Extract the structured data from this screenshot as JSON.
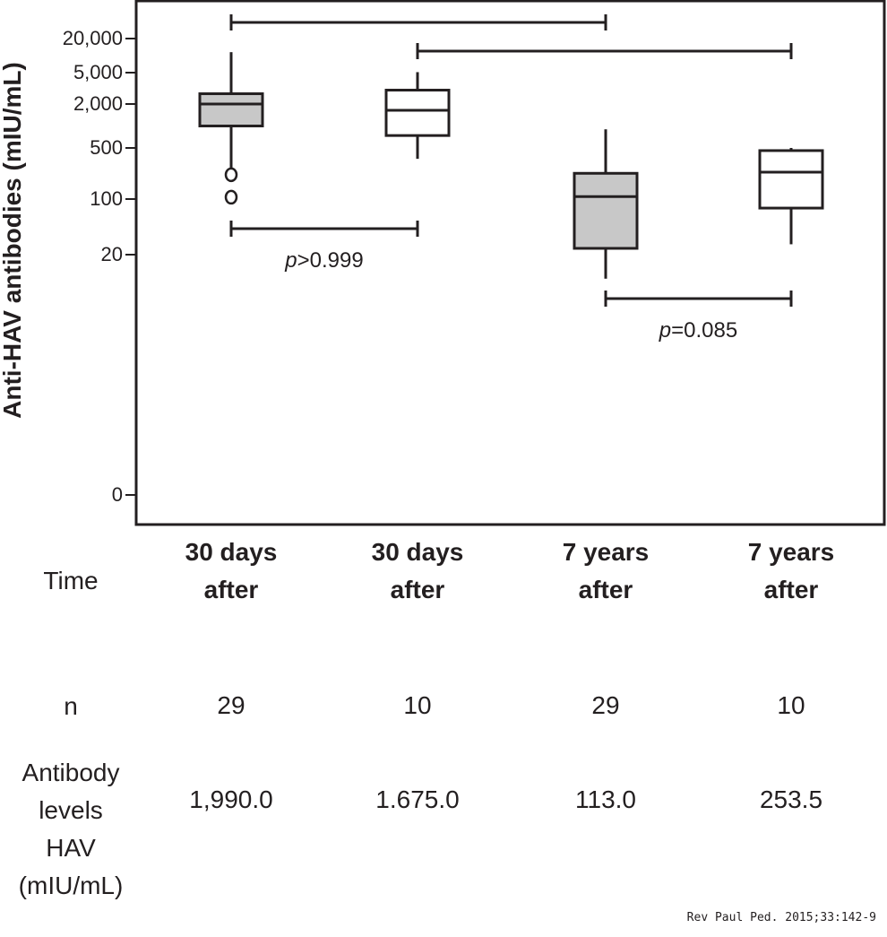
{
  "chart_data": {
    "type": "box",
    "ylabel": "Anti-HAV antibodies (mIU/mL)",
    "yscale": "log (broken, with 0 at bottom)",
    "yticks": [
      20000,
      5000,
      2000,
      500,
      100,
      20,
      0
    ],
    "ytick_labels": [
      "20,000",
      "5,000",
      "2,000",
      "500",
      "100",
      "20",
      "0"
    ],
    "grid": false,
    "categories": [
      {
        "line1": "30 days",
        "line2": "after"
      },
      {
        "line1": "30 days",
        "line2": "after"
      },
      {
        "line1": "7 years",
        "line2": "after"
      },
      {
        "line1": "7 years",
        "line2": "after"
      }
    ],
    "boxes": [
      {
        "fill": "#c8c8c8",
        "whisker_low": 260,
        "q1": 1000,
        "median": 2000,
        "q3": 2700,
        "whisker_high": 11500,
        "outliers": [
          215,
          106
        ]
      },
      {
        "fill": "#ffffff",
        "whisker_low": 355,
        "q1": 740,
        "median": 1640,
        "q3": 3000,
        "whisker_high": 5100,
        "outliers": []
      },
      {
        "fill": "#c8c8c8",
        "whisker_low": 18,
        "q1": 24,
        "median": 108,
        "q3": 225,
        "whisker_high": 900,
        "outliers": []
      },
      {
        "fill": "#ffffff",
        "whisker_low": 27,
        "q1": 77,
        "median": 233,
        "q3": 460,
        "whisker_high": 500,
        "outliers": []
      }
    ],
    "comparisons": [
      {
        "from": 0,
        "to": 2,
        "position": "top",
        "label": ""
      },
      {
        "from": 1,
        "to": 3,
        "position": "top",
        "label": ""
      },
      {
        "from": 0,
        "to": 1,
        "position": "bottom",
        "p_symbol": "p",
        "label": ">0.999"
      },
      {
        "from": 2,
        "to": 3,
        "position": "bottom",
        "p_symbol": "p",
        "label": "=0.085"
      }
    ]
  },
  "table": {
    "time_label": "Time",
    "n_label": "n",
    "n_values": [
      "29",
      "10",
      "29",
      "10"
    ],
    "levels_label": [
      "Antibody",
      "levels",
      "HAV",
      "(mIU/mL)"
    ],
    "levels_values": [
      "1,990.0",
      "1.675.0",
      "113.0",
      "253.5"
    ]
  },
  "citation": "Rev Paul Ped. 2015;33:142-9"
}
